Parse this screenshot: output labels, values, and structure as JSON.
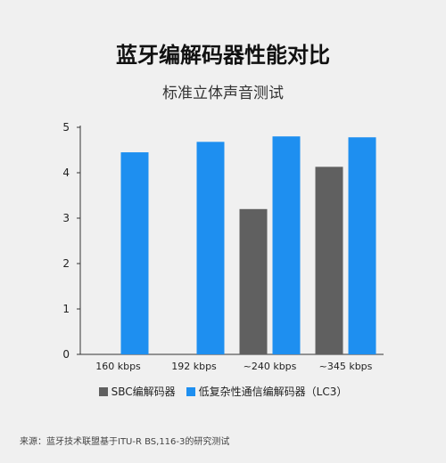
{
  "title": "蓝牙编解码器性能对比",
  "subtitle": "标准立体声音测试",
  "source": "来源：蓝牙技术联盟基于ITU-R BS,116-3的研究测试",
  "colors": {
    "sbc": "#606060",
    "lc3": "#1e8ff0"
  },
  "chart_data": {
    "type": "bar",
    "title": "蓝牙编解码器性能对比",
    "subtitle": "标准立体声音测试",
    "categories": [
      "160 kbps",
      "192 kbps",
      "~240 kbps",
      "~345 kbps"
    ],
    "series": [
      {
        "name": "SBC编解码器",
        "values": [
          null,
          null,
          3.2,
          4.13
        ]
      },
      {
        "name": "低复杂性通信编解码器（LC3）",
        "values": [
          4.45,
          4.68,
          4.8,
          4.78
        ]
      }
    ],
    "ylim": [
      0,
      5
    ],
    "yticks": [
      "0",
      "1",
      "2",
      "3",
      "4",
      "5"
    ],
    "grid": false,
    "legend": "bottom"
  }
}
